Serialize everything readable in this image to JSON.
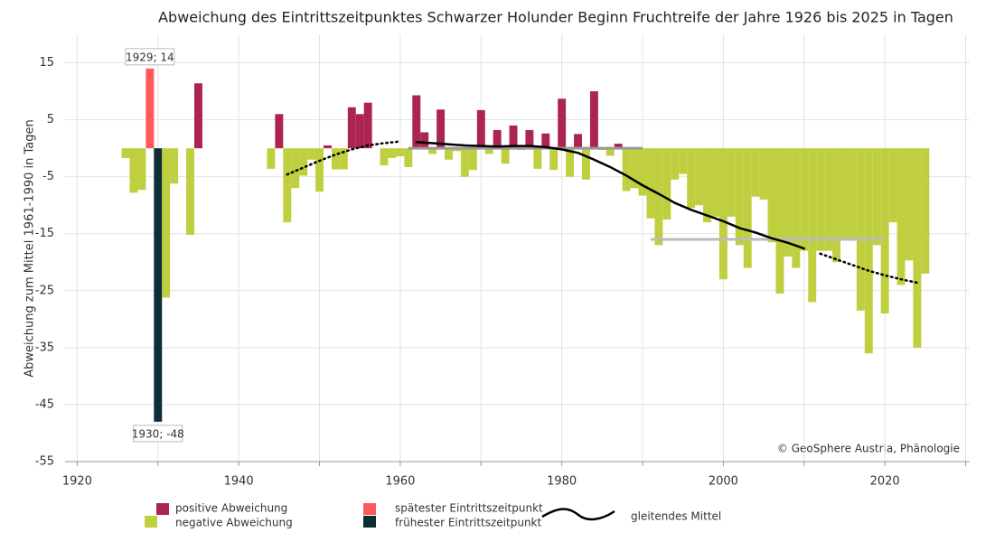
{
  "chart_data": {
    "type": "bar",
    "title": "Abweichung des Eintrittszeitpunktes Schwarzer Holunder Beginn Fruchtreife der Jahre 1926 bis 2025 in Tagen",
    "y_label": "Abweichung zum Mittel 1961-1990 in Tagen",
    "credit": "© GeoSphere Austria, Phänologie",
    "xlim": [
      1918.5,
      2030.5
    ],
    "xticks": [
      1920,
      1940,
      1960,
      1980,
      2000,
      2020
    ],
    "x_minor_ticks": [
      1930,
      1950,
      1970,
      1990,
      2010,
      2030
    ],
    "ylim": [
      -55,
      20
    ],
    "yticks": [
      15,
      5,
      -5,
      -15,
      -25,
      -35,
      -45,
      -55
    ],
    "grid": true,
    "x": [
      1926,
      1927,
      1928,
      1929,
      1930,
      1931,
      1932,
      1933,
      1934,
      1935,
      1936,
      1937,
      1938,
      1939,
      1940,
      1941,
      1942,
      1943,
      1944,
      1945,
      1946,
      1947,
      1948,
      1949,
      1950,
      1951,
      1952,
      1953,
      1954,
      1955,
      1956,
      1957,
      1958,
      1959,
      1960,
      1961,
      1962,
      1963,
      1964,
      1965,
      1966,
      1967,
      1968,
      1969,
      1970,
      1971,
      1972,
      1973,
      1974,
      1975,
      1976,
      1977,
      1978,
      1979,
      1980,
      1981,
      1982,
      1983,
      1984,
      1985,
      1986,
      1987,
      1988,
      1989,
      1990,
      1991,
      1992,
      1993,
      1994,
      1995,
      1996,
      1997,
      1998,
      1999,
      2000,
      2001,
      2002,
      2003,
      2004,
      2005,
      2006,
      2007,
      2008,
      2009,
      2010,
      2011,
      2012,
      2013,
      2014,
      2015,
      2016,
      2017,
      2018,
      2019,
      2020,
      2021,
      2022,
      2023,
      2024,
      2025
    ],
    "values": [
      -1.7,
      -7.8,
      -7.3,
      14,
      -48,
      -26.2,
      -6.2,
      null,
      -15.2,
      11.4,
      null,
      null,
      null,
      null,
      null,
      null,
      null,
      null,
      -3.6,
      6,
      -13,
      -7,
      -4.8,
      -2,
      -7.6,
      0.5,
      -3.7,
      -3.7,
      7.2,
      6,
      8,
      null,
      -3,
      -1.7,
      -1.4,
      -3.3,
      9.3,
      2.8,
      -1,
      6.8,
      -2,
      -0.5,
      -5,
      -3.8,
      6.7,
      -1,
      3.2,
      -2.7,
      4,
      -0.3,
      3.2,
      -3.6,
      2.6,
      -3.8,
      8.7,
      -5,
      2.5,
      -5.5,
      10,
      -0.3,
      -1.3,
      0.8,
      -7.5,
      -7,
      -8.3,
      -12.3,
      -17,
      -12.5,
      -5.5,
      -4.5,
      -10.5,
      -10,
      -13,
      -12,
      -23,
      -12,
      -17,
      -21,
      -8.5,
      -9,
      -16.5,
      -25.5,
      -19,
      -21,
      -18,
      -27,
      -18,
      -18,
      -20,
      -16,
      -16,
      -28.5,
      -36,
      -17,
      -29,
      -13,
      -24,
      -19.7,
      -35,
      -22
    ],
    "legend": [
      {
        "name": "positive Abweichung",
        "color": "#ac2450"
      },
      {
        "name": "negative Abweichung",
        "color": "#bfcf3f"
      },
      {
        "name": "spätester Eintrittszeitpunkt",
        "color": "#ff5a5a"
      },
      {
        "name": "frühester Eintrittszeitpunkt",
        "color": "#0d2e36"
      },
      {
        "name": "gleitendes Mittel",
        "color": "#000000"
      }
    ],
    "moving_average": {
      "x": [
        1946,
        1948,
        1950,
        1952,
        1954,
        1956,
        1958,
        1960,
        1962,
        1964,
        1966,
        1968,
        1970,
        1972,
        1974,
        1976,
        1978,
        1980,
        1982,
        1984,
        1986,
        1988,
        1990,
        1992,
        1994,
        1996,
        1998,
        2000,
        2002,
        2004,
        2006,
        2008,
        2010,
        2012,
        2014,
        2016,
        2018,
        2020,
        2022,
        2024
      ],
      "values": [
        -4.6,
        -3.4,
        -2.2,
        -1.1,
        -0.2,
        0.5,
        0.9,
        1.2,
        1.1,
        0.9,
        0.7,
        0.5,
        0.4,
        0.3,
        0.4,
        0.4,
        0.2,
        -0.2,
        -0.8,
        -2,
        -3.3,
        -4.8,
        -6.5,
        -8,
        -9.6,
        -10.8,
        -11.8,
        -12.8,
        -14,
        -14.8,
        -15.8,
        -16.6,
        -17.6,
        -18.5,
        -19.5,
        -20.5,
        -21.5,
        -22.3,
        -23,
        -23.6
      ],
      "solid_range": [
        1962,
        2010
      ]
    },
    "reference_lines": [
      {
        "from": 1961,
        "to": 1990,
        "value": 0,
        "color": "#999999"
      },
      {
        "from": 1991,
        "to": 2020,
        "value": -16,
        "color": "#bbbbbb"
      }
    ],
    "annotations": [
      {
        "text": "1929; 14",
        "x": 1929,
        "y": 14
      },
      {
        "text": "1930; -48",
        "x": 1930,
        "y": -48
      }
    ]
  }
}
